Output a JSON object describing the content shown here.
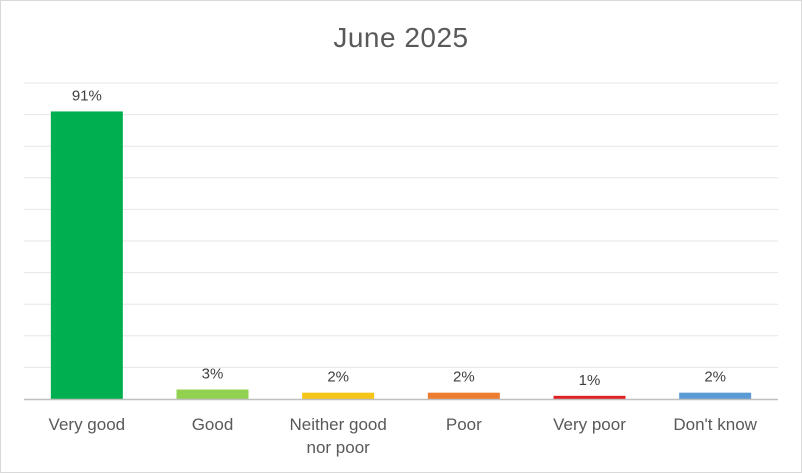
{
  "chart_data": {
    "type": "bar",
    "title": "June 2025",
    "categories": [
      [
        "Very good"
      ],
      [
        "Good"
      ],
      [
        "Neither good",
        "nor poor"
      ],
      [
        "Poor"
      ],
      [
        "Very poor"
      ],
      [
        "Don't know"
      ]
    ],
    "values": [
      91,
      3,
      2,
      2,
      1,
      2
    ],
    "data_labels": [
      "91%",
      "3%",
      "2%",
      "2%",
      "1%",
      "2%"
    ],
    "colors": [
      "#00b050",
      "#92d050",
      "#f5c518",
      "#ed7d31",
      "#e02020",
      "#5b9bd5"
    ],
    "xlabel": "",
    "ylabel": "",
    "ylim": [
      0,
      100
    ],
    "grid": true,
    "legend": "none"
  }
}
